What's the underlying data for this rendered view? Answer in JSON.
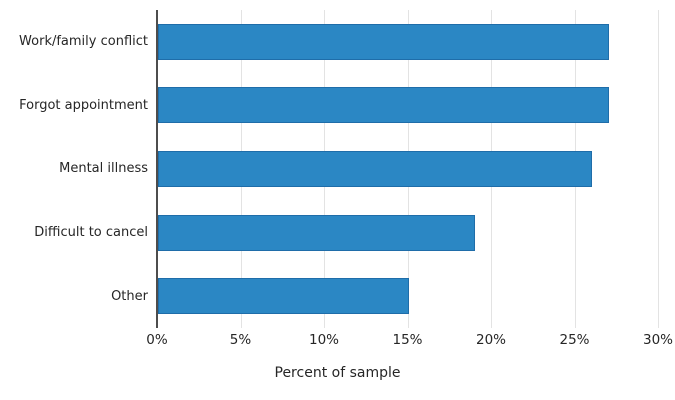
{
  "chart_data": {
    "type": "bar",
    "orientation": "horizontal",
    "title": "",
    "xlabel": "Percent of sample",
    "ylabel": "",
    "categories": [
      "Work/family conflict",
      "Forgot appointment",
      "Mental illness",
      "Difficult to cancel",
      "Other"
    ],
    "values": [
      27,
      27,
      26,
      19,
      15
    ],
    "xlim": [
      0,
      30
    ],
    "x_tick_values": [
      0,
      5,
      10,
      15,
      20,
      25,
      30
    ],
    "x_tick_labels": [
      "0%",
      "5%",
      "10%",
      "15%",
      "20%",
      "25%",
      "30%"
    ],
    "grid": true,
    "legend_position": "none",
    "colors": {
      "bar_fill": "#2b87c4",
      "bar_edge": "#1f6da9",
      "gridline": "#e3e3e3",
      "axis_line": "#4d4d4d",
      "text": "#262626",
      "background": "#ffffff"
    }
  }
}
